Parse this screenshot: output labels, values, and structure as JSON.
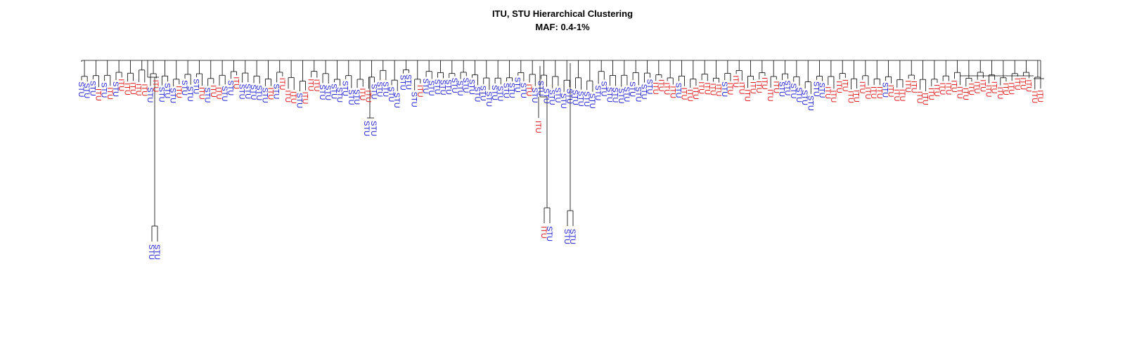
{
  "title": "ITU, STU Hierarchical Clustering",
  "subtitle": "MAF: 0.4-1%",
  "colors": {
    "STU": "#1f1fd6",
    "ITU": "#e31a1c",
    "branch": "#000000"
  },
  "dendrogram": {
    "leaves": [
      {
        "label": "STU",
        "group": "STU"
      },
      {
        "label": "STU",
        "group": "STU"
      },
      {
        "label": "STU",
        "group": "STU"
      },
      {
        "label": "ITU",
        "group": "ITU"
      },
      {
        "label": "STU",
        "group": "STU"
      },
      {
        "label": "ITU",
        "group": "ITU"
      },
      {
        "label": "STU",
        "group": "STU"
      },
      {
        "label": "ITU",
        "group": "ITU"
      },
      {
        "label": "ITU",
        "group": "ITU"
      },
      {
        "label": "ITU",
        "group": "ITU"
      },
      {
        "label": "ITU",
        "group": "ITU"
      },
      {
        "label": "ITU",
        "group": "ITU"
      },
      {
        "label": "STU",
        "group": "STU"
      },
      {
        "label": "ITU",
        "group": "ITU"
      },
      {
        "label": "STU",
        "group": "STU"
      },
      {
        "label": "STU",
        "group": "STU"
      },
      {
        "label": "STU",
        "group": "STU"
      },
      {
        "label": "ITU",
        "group": "ITU"
      },
      {
        "label": "STU",
        "group": "STU"
      },
      {
        "label": "STU",
        "group": "STU"
      },
      {
        "label": "STU",
        "group": "STU"
      },
      {
        "label": "ITU",
        "group": "ITU"
      },
      {
        "label": "STU",
        "group": "STU"
      },
      {
        "label": "ITU",
        "group": "ITU"
      },
      {
        "label": "ITU",
        "group": "ITU"
      },
      {
        "label": "STU",
        "group": "STU"
      },
      {
        "label": "STU",
        "group": "STU"
      },
      {
        "label": "ITU",
        "group": "ITU"
      },
      {
        "label": "STU",
        "group": "STU"
      },
      {
        "label": "STU",
        "group": "STU"
      },
      {
        "label": "STU",
        "group": "STU"
      },
      {
        "label": "STU",
        "group": "STU"
      },
      {
        "label": "STU",
        "group": "STU"
      },
      {
        "label": "ITU",
        "group": "ITU"
      },
      {
        "label": "STU",
        "group": "STU"
      },
      {
        "label": "ITU",
        "group": "ITU"
      },
      {
        "label": "ITU",
        "group": "ITU"
      },
      {
        "label": "ITU",
        "group": "ITU"
      },
      {
        "label": "STU",
        "group": "STU"
      },
      {
        "label": "ITU",
        "group": "ITU"
      },
      {
        "label": "ITU",
        "group": "ITU"
      },
      {
        "label": "ITU",
        "group": "ITU"
      },
      {
        "label": "STU",
        "group": "STU"
      },
      {
        "label": "STU",
        "group": "STU"
      },
      {
        "label": "STU",
        "group": "STU"
      },
      {
        "label": "STU",
        "group": "STU"
      },
      {
        "label": "STU",
        "group": "STU"
      },
      {
        "label": "STU",
        "group": "STU"
      },
      {
        "label": "STU",
        "group": "STU"
      },
      {
        "label": "ITU",
        "group": "ITU"
      },
      {
        "label": "ITU",
        "group": "ITU"
      },
      {
        "label": "STU",
        "group": "STU"
      },
      {
        "label": "STU",
        "group": "STU"
      },
      {
        "label": "STU",
        "group": "STU"
      },
      {
        "label": "STU",
        "group": "STU"
      },
      {
        "label": "STU",
        "group": "STU"
      },
      {
        "label": "STU",
        "group": "STU"
      },
      {
        "label": "STU",
        "group": "STU"
      },
      {
        "label": "STU",
        "group": "STU"
      },
      {
        "label": "ITU",
        "group": "ITU"
      },
      {
        "label": "STU",
        "group": "STU"
      },
      {
        "label": "STU",
        "group": "STU"
      },
      {
        "label": "STU",
        "group": "STU"
      },
      {
        "label": "STU",
        "group": "STU"
      },
      {
        "label": "STU",
        "group": "STU"
      },
      {
        "label": "STU",
        "group": "STU"
      },
      {
        "label": "STU",
        "group": "STU"
      },
      {
        "label": "STU",
        "group": "STU"
      },
      {
        "label": "STU",
        "group": "STU"
      },
      {
        "label": "STU",
        "group": "STU"
      },
      {
        "label": "STU",
        "group": "STU"
      },
      {
        "label": "STU",
        "group": "STU"
      },
      {
        "label": "STU",
        "group": "STU"
      },
      {
        "label": "STU",
        "group": "STU"
      },
      {
        "label": "STU",
        "group": "STU"
      },
      {
        "label": "STU",
        "group": "STU"
      },
      {
        "label": "STU",
        "group": "STU"
      },
      {
        "label": "STU",
        "group": "STU"
      },
      {
        "label": "ITU",
        "group": "ITU"
      },
      {
        "label": "STU",
        "group": "STU"
      },
      {
        "label": "STU",
        "group": "STU"
      },
      {
        "label": "STU",
        "group": "STU"
      },
      {
        "label": "STU",
        "group": "STU"
      },
      {
        "label": "STU",
        "group": "STU"
      },
      {
        "label": "STU",
        "group": "STU"
      },
      {
        "label": "STU",
        "group": "STU"
      },
      {
        "label": "STU",
        "group": "STU"
      },
      {
        "label": "STU",
        "group": "STU"
      },
      {
        "label": "STU",
        "group": "STU"
      },
      {
        "label": "STU",
        "group": "STU"
      },
      {
        "label": "STU",
        "group": "STU"
      },
      {
        "label": "STU",
        "group": "STU"
      },
      {
        "label": "STU",
        "group": "STU"
      },
      {
        "label": "STU",
        "group": "STU"
      },
      {
        "label": "STU",
        "group": "STU"
      },
      {
        "label": "STU",
        "group": "STU"
      },
      {
        "label": "STU",
        "group": "STU"
      },
      {
        "label": "STU",
        "group": "STU"
      },
      {
        "label": "STU",
        "group": "STU"
      },
      {
        "label": "STU",
        "group": "STU"
      },
      {
        "label": "ITU",
        "group": "ITU"
      },
      {
        "label": "ITU",
        "group": "ITU"
      },
      {
        "label": "ITU",
        "group": "ITU"
      },
      {
        "label": "ITU",
        "group": "ITU"
      },
      {
        "label": "STU",
        "group": "STU"
      },
      {
        "label": "ITU",
        "group": "ITU"
      },
      {
        "label": "ITU",
        "group": "ITU"
      },
      {
        "label": "ITU",
        "group": "ITU"
      },
      {
        "label": "ITU",
        "group": "ITU"
      },
      {
        "label": "ITU",
        "group": "ITU"
      },
      {
        "label": "ITU",
        "group": "ITU"
      },
      {
        "label": "ITU",
        "group": "ITU"
      },
      {
        "label": "STU",
        "group": "STU"
      },
      {
        "label": "ITU",
        "group": "ITU"
      },
      {
        "label": "ITU",
        "group": "ITU"
      },
      {
        "label": "ITU",
        "group": "ITU"
      },
      {
        "label": "ITU",
        "group": "ITU"
      },
      {
        "label": "ITU",
        "group": "ITU"
      },
      {
        "label": "ITU",
        "group": "ITU"
      },
      {
        "label": "ITU",
        "group": "ITU"
      },
      {
        "label": "ITU",
        "group": "ITU"
      },
      {
        "label": "ITU",
        "group": "ITU"
      },
      {
        "label": "STU",
        "group": "STU"
      },
      {
        "label": "STU",
        "group": "STU"
      },
      {
        "label": "STU",
        "group": "STU"
      },
      {
        "label": "STU",
        "group": "STU"
      },
      {
        "label": "STU",
        "group": "STU"
      },
      {
        "label": "STU",
        "group": "STU"
      },
      {
        "label": "STU",
        "group": "STU"
      },
      {
        "label": "STU",
        "group": "STU"
      },
      {
        "label": "ITU",
        "group": "ITU"
      },
      {
        "label": "ITU",
        "group": "ITU"
      },
      {
        "label": "ITU",
        "group": "ITU"
      },
      {
        "label": "ITU",
        "group": "ITU"
      },
      {
        "label": "ITU",
        "group": "ITU"
      },
      {
        "label": "ITU",
        "group": "ITU"
      },
      {
        "label": "ITU",
        "group": "ITU"
      },
      {
        "label": "ITU",
        "group": "ITU"
      },
      {
        "label": "ITU",
        "group": "ITU"
      },
      {
        "label": "ITU",
        "group": "ITU"
      },
      {
        "label": "STU",
        "group": "STU"
      },
      {
        "label": "ITU",
        "group": "ITU"
      },
      {
        "label": "ITU",
        "group": "ITU"
      },
      {
        "label": "ITU",
        "group": "ITU"
      },
      {
        "label": "ITU",
        "group": "ITU"
      },
      {
        "label": "ITU",
        "group": "ITU"
      },
      {
        "label": "ITU",
        "group": "ITU"
      },
      {
        "label": "ITU",
        "group": "ITU"
      },
      {
        "label": "ITU",
        "group": "ITU"
      },
      {
        "label": "ITU",
        "group": "ITU"
      },
      {
        "label": "ITU",
        "group": "ITU"
      },
      {
        "label": "ITU",
        "group": "ITU"
      },
      {
        "label": "ITU",
        "group": "ITU"
      },
      {
        "label": "ITU",
        "group": "ITU"
      },
      {
        "label": "ITU",
        "group": "ITU"
      },
      {
        "label": "ITU",
        "group": "ITU"
      },
      {
        "label": "ITU",
        "group": "ITU"
      },
      {
        "label": "ITU",
        "group": "ITU"
      },
      {
        "label": "ITU",
        "group": "ITU"
      },
      {
        "label": "ITU",
        "group": "ITU"
      },
      {
        "label": "ITU",
        "group": "ITU"
      },
      {
        "label": "ITU",
        "group": "ITU"
      },
      {
        "label": "ITU",
        "group": "ITU"
      },
      {
        "label": "ITU",
        "group": "ITU"
      },
      {
        "label": "ITU",
        "group": "ITU"
      },
      {
        "label": "ITU",
        "group": "ITU"
      },
      {
        "label": "ITU",
        "group": "ITU"
      },
      {
        "label": "ITU",
        "group": "ITU"
      }
    ],
    "long_leaves": [
      {
        "label": "STU",
        "group": "STU"
      },
      {
        "label": "STU",
        "group": "STU"
      },
      {
        "label": "ITU",
        "group": "ITU"
      },
      {
        "label": "STU",
        "group": "STU"
      },
      {
        "label": "STU",
        "group": "STU"
      },
      {
        "label": "STU",
        "group": "STU"
      },
      {
        "label": "ITU",
        "group": "ITU"
      },
      {
        "label": "STU",
        "group": "STU"
      },
      {
        "label": "STU",
        "group": "STU"
      }
    ]
  }
}
